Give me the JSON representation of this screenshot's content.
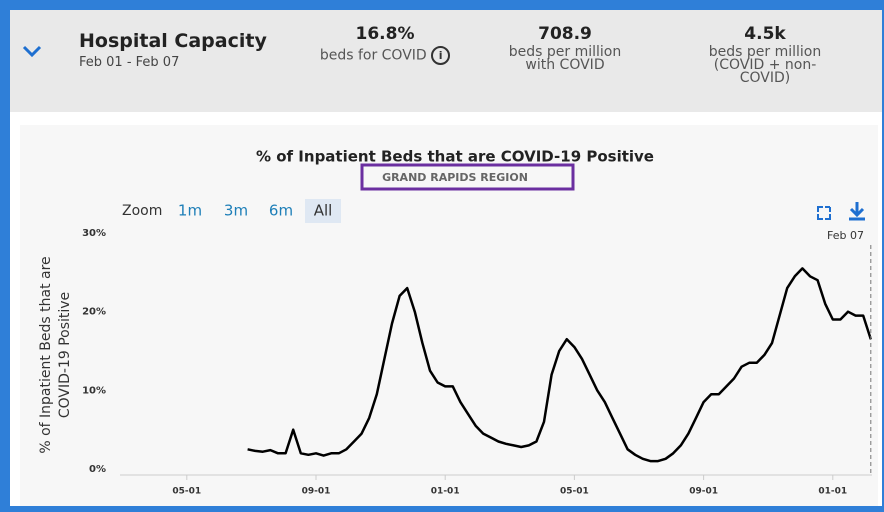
{
  "header": {
    "title": "Hospital Capacity",
    "date_range": "Feb 01 - Feb 07"
  },
  "stats": [
    {
      "value": "16.8%",
      "label": [
        "beds for COVID"
      ]
    },
    {
      "value": "708.9",
      "label": [
        "beds per million",
        "with COVID"
      ]
    },
    {
      "value": "4.5k",
      "label": [
        "beds per million",
        "(COVID + non-",
        "COVID)"
      ]
    }
  ],
  "zoom": {
    "label": "Zoom",
    "options": [
      "1m",
      "3m",
      "6m",
      "All"
    ],
    "active": "All"
  },
  "chart_data": {
    "type": "line",
    "title": "% of Inpatient Beds that are COVID-19 Positive",
    "subtitle": "GRAND RAPIDS REGION",
    "y_label": [
      "% of Inpatient Beds that are",
      "COVID-19 Positive"
    ],
    "annotation": "Feb 07",
    "categories": [
      null,
      null,
      null,
      null,
      null,
      null,
      null,
      null,
      "05-01",
      null,
      null,
      null,
      null,
      null,
      null,
      null,
      null,
      null,
      null,
      null,
      null,
      null,
      null,
      null,
      null,
      "09-01",
      null,
      null,
      null,
      null,
      null,
      null,
      null,
      null,
      null,
      null,
      null,
      null,
      null,
      null,
      null,
      null,
      "01-01",
      null,
      null,
      null,
      null,
      null,
      null,
      null,
      null,
      null,
      null,
      null,
      null,
      null,
      null,
      null,
      null,
      "05-01",
      null,
      null,
      null,
      null,
      null,
      null,
      null,
      null,
      null,
      null,
      null,
      null,
      null,
      null,
      null,
      null,
      "09-01",
      null,
      null,
      null,
      null,
      null,
      null,
      null,
      null,
      null,
      null,
      null,
      null,
      null,
      null,
      null,
      null,
      "01-01",
      null,
      null,
      null,
      null,
      null
    ],
    "series": [
      {
        "name": "Grand Rapids Region",
        "color": "#000000",
        "values": [
          null,
          null,
          null,
          null,
          null,
          null,
          null,
          null,
          null,
          null,
          null,
          null,
          null,
          null,
          null,
          null,
          2.5,
          2.3,
          2.2,
          2.4,
          2.0,
          2.0,
          5.0,
          2.0,
          1.8,
          2.0,
          1.7,
          2.0,
          2.0,
          2.5,
          3.5,
          4.5,
          6.5,
          9.5,
          14,
          18.5,
          22,
          23,
          20,
          16,
          12.5,
          11,
          10.5,
          10.5,
          8.5,
          7,
          5.5,
          4.5,
          4,
          3.5,
          3.2,
          3,
          2.8,
          3,
          3.5,
          6,
          12,
          15,
          16.5,
          15.5,
          14,
          12,
          10,
          8.5,
          6.5,
          4.5,
          2.5,
          1.8,
          1.3,
          1.0,
          1.0,
          1.3,
          2.0,
          3,
          4.5,
          6.5,
          8.5,
          9.5,
          9.5,
          10.5,
          11.5,
          13,
          13.5,
          13.5,
          14.5,
          16,
          19.5,
          23,
          24.5,
          25.5,
          24.5,
          24,
          21,
          19,
          19,
          20,
          19.5,
          19.5,
          16.5
        ]
      }
    ],
    "ylim": [
      0,
      30
    ],
    "yticks": [
      {
        "value": 0,
        "label": "0%"
      },
      {
        "value": 10,
        "label": "10%"
      },
      {
        "value": 20,
        "label": "20%"
      },
      {
        "value": 30,
        "label": "30%"
      }
    ],
    "grid": false
  }
}
